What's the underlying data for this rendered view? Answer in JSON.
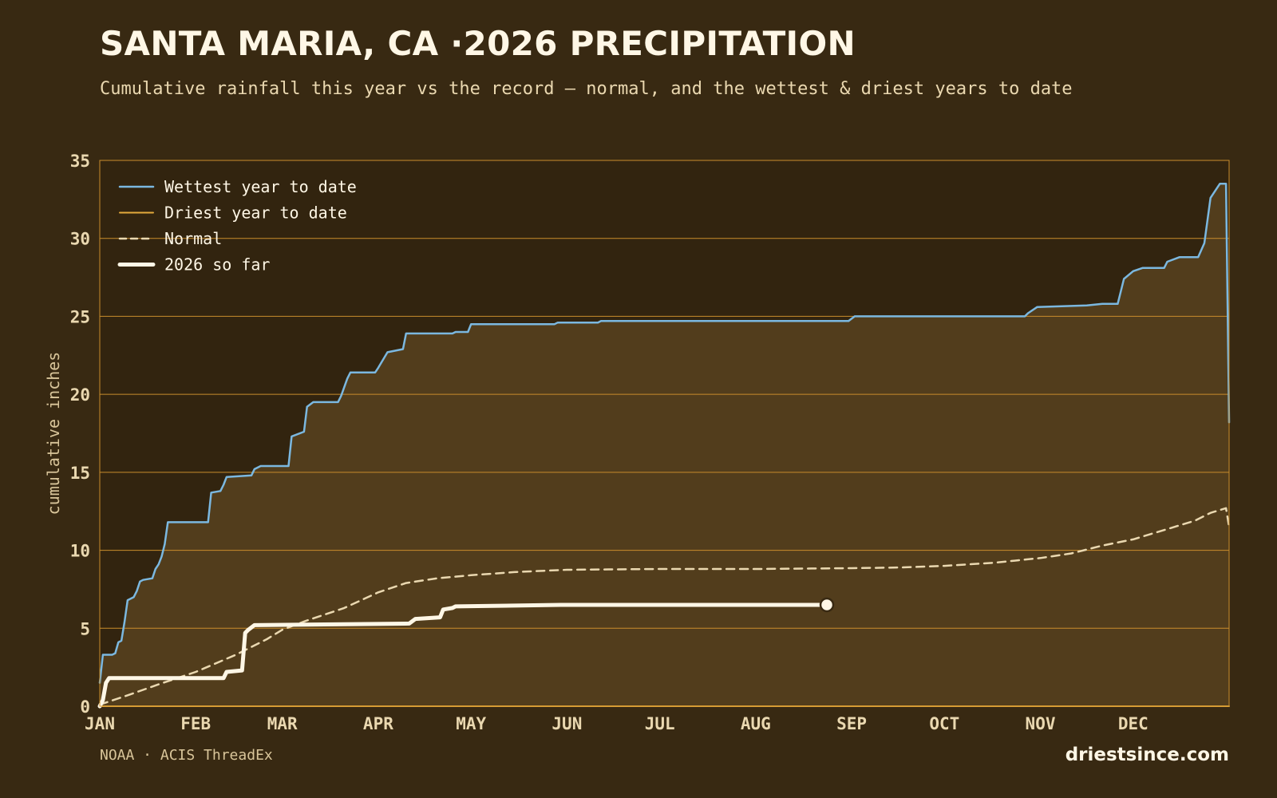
{
  "title": "SANTA MARIA, CA ·2026 PRECIPITATION",
  "subtitle": "Cumulative rainfall this year vs the record — normal, and the wettest & driest years to date",
  "source": "NOAA · ACIS ThreadEx",
  "brand": "driestsince.com",
  "colors": {
    "background": "#382912",
    "plot_background": "#32240f",
    "area_fill": "#523d1c",
    "gridline": "#c98d2c",
    "wettest": "#7bb8e0",
    "driest": "#e4aa3c",
    "normal": "#ead8b0",
    "current": "#fff7e6"
  },
  "chart_data": {
    "type": "line",
    "ylabel": "cumulative inches",
    "xlabel": "",
    "ylim": [
      0,
      35
    ],
    "xlim": [
      1,
      366
    ],
    "yticks": [
      0,
      5,
      10,
      15,
      20,
      25,
      30,
      35
    ],
    "month_ticks": [
      {
        "label": "JAN",
        "day": 1
      },
      {
        "label": "FEB",
        "day": 32
      },
      {
        "label": "MAR",
        "day": 60
      },
      {
        "label": "APR",
        "day": 91
      },
      {
        "label": "MAY",
        "day": 121
      },
      {
        "label": "JUN",
        "day": 152
      },
      {
        "label": "JUL",
        "day": 182
      },
      {
        "label": "AUG",
        "day": 213
      },
      {
        "label": "SEP",
        "day": 244
      },
      {
        "label": "OCT",
        "day": 274
      },
      {
        "label": "NOV",
        "day": 305
      },
      {
        "label": "DEC",
        "day": 335
      }
    ],
    "grid": true,
    "legend_position": "top-left",
    "legend": [
      {
        "label": "Wettest year to date",
        "key": "wettest"
      },
      {
        "label": "Driest year to date",
        "key": "driest"
      },
      {
        "label": "Normal",
        "key": "normal"
      },
      {
        "label": "2026 so far",
        "key": "current"
      }
    ],
    "series": [
      {
        "key": "wettest",
        "name": "Wettest year to date",
        "points": [
          [
            1,
            1.5
          ],
          [
            2,
            3.3
          ],
          [
            5,
            3.3
          ],
          [
            6,
            3.4
          ],
          [
            7,
            4.1
          ],
          [
            8,
            4.2
          ],
          [
            9,
            5.4
          ],
          [
            10,
            6.8
          ],
          [
            12,
            7.0
          ],
          [
            13,
            7.4
          ],
          [
            14,
            8.0
          ],
          [
            15,
            8.1
          ],
          [
            18,
            8.2
          ],
          [
            19,
            8.8
          ],
          [
            20,
            9.1
          ],
          [
            21,
            9.6
          ],
          [
            22,
            10.4
          ],
          [
            23,
            11.8
          ],
          [
            36,
            11.8
          ],
          [
            37,
            13.7
          ],
          [
            40,
            13.8
          ],
          [
            41,
            14.2
          ],
          [
            42,
            14.7
          ],
          [
            50,
            14.8
          ],
          [
            51,
            15.2
          ],
          [
            53,
            15.4
          ],
          [
            62,
            15.4
          ],
          [
            63,
            17.3
          ],
          [
            67,
            17.6
          ],
          [
            68,
            19.2
          ],
          [
            70,
            19.5
          ],
          [
            78,
            19.5
          ],
          [
            79,
            19.9
          ],
          [
            81,
            21.0
          ],
          [
            82,
            21.4
          ],
          [
            90,
            21.4
          ],
          [
            91,
            21.7
          ],
          [
            94,
            22.7
          ],
          [
            99,
            22.9
          ],
          [
            100,
            23.9
          ],
          [
            115,
            23.9
          ],
          [
            116,
            24.0
          ],
          [
            120,
            24.0
          ],
          [
            121,
            24.5
          ],
          [
            123,
            24.5
          ],
          [
            148,
            24.5
          ],
          [
            149,
            24.6
          ],
          [
            162,
            24.6
          ],
          [
            163,
            24.7
          ],
          [
            243,
            24.7
          ],
          [
            245,
            25.0
          ],
          [
            300,
            25.0
          ],
          [
            301,
            25.2
          ],
          [
            304,
            25.6
          ],
          [
            320,
            25.7
          ],
          [
            325,
            25.8
          ],
          [
            330,
            25.8
          ],
          [
            332,
            27.4
          ],
          [
            335,
            27.9
          ],
          [
            338,
            28.1
          ],
          [
            345,
            28.1
          ],
          [
            346,
            28.5
          ],
          [
            350,
            28.8
          ],
          [
            356,
            28.8
          ],
          [
            358,
            29.7
          ],
          [
            360,
            32.6
          ],
          [
            363,
            33.5
          ],
          [
            365,
            33.5
          ],
          [
            366,
            18.2
          ]
        ]
      },
      {
        "key": "driest",
        "name": "Driest year to date",
        "points": [
          [
            1,
            0
          ],
          [
            366,
            0
          ]
        ]
      },
      {
        "key": "normal",
        "name": "Normal",
        "points": [
          [
            1,
            0.1
          ],
          [
            10,
            0.7
          ],
          [
            20,
            1.4
          ],
          [
            32,
            2.2
          ],
          [
            45,
            3.3
          ],
          [
            55,
            4.3
          ],
          [
            60,
            4.9
          ],
          [
            68,
            5.5
          ],
          [
            80,
            6.3
          ],
          [
            91,
            7.3
          ],
          [
            100,
            7.9
          ],
          [
            110,
            8.2
          ],
          [
            121,
            8.4
          ],
          [
            135,
            8.6
          ],
          [
            152,
            8.75
          ],
          [
            182,
            8.8
          ],
          [
            213,
            8.8
          ],
          [
            244,
            8.85
          ],
          [
            260,
            8.9
          ],
          [
            274,
            9.0
          ],
          [
            290,
            9.2
          ],
          [
            305,
            9.5
          ],
          [
            315,
            9.8
          ],
          [
            325,
            10.3
          ],
          [
            335,
            10.7
          ],
          [
            345,
            11.3
          ],
          [
            355,
            11.9
          ],
          [
            360,
            12.4
          ],
          [
            365,
            12.7
          ],
          [
            366,
            11.5
          ]
        ]
      },
      {
        "key": "current",
        "name": "2026 so far",
        "points": [
          [
            1,
            0
          ],
          [
            2,
            0.4
          ],
          [
            3,
            1.5
          ],
          [
            4,
            1.8
          ],
          [
            41,
            1.8
          ],
          [
            42,
            2.2
          ],
          [
            47,
            2.3
          ],
          [
            48,
            4.7
          ],
          [
            49,
            4.9
          ],
          [
            51,
            5.2
          ],
          [
            101,
            5.3
          ],
          [
            103,
            5.6
          ],
          [
            111,
            5.7
          ],
          [
            112,
            6.2
          ],
          [
            115,
            6.3
          ],
          [
            116,
            6.4
          ],
          [
            150,
            6.5
          ],
          [
            236,
            6.5
          ]
        ]
      }
    ],
    "current_endpoint": {
      "day": 236,
      "value": 6.5
    }
  }
}
